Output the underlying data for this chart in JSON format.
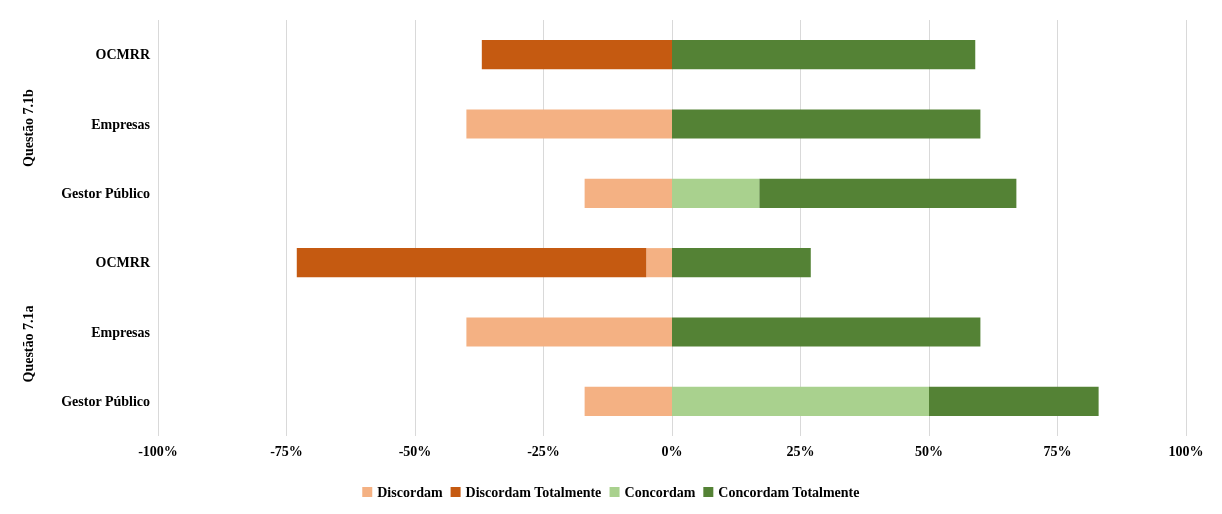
{
  "chart_data": {
    "type": "bar",
    "orientation": "horizontal",
    "stacked": true,
    "categories": [
      "OCMRR",
      "Empresas",
      "Gestor Público",
      "OCMRR",
      "Empresas",
      "Gestor Público"
    ],
    "series": [
      {
        "name": "Discordam",
        "color": "#f4b183",
        "values": [
          null,
          -40,
          -17,
          -5,
          -40,
          -17
        ]
      },
      {
        "name": "Discordam Totalmente",
        "color": "#c55a11",
        "values": [
          -37,
          null,
          null,
          -68,
          null,
          null
        ]
      },
      {
        "name": "Concordam",
        "color": "#a9d18e",
        "values": [
          null,
          null,
          17,
          null,
          null,
          50
        ]
      },
      {
        "name": "Concordam Totalmente",
        "color": "#548235",
        "values": [
          59,
          60,
          50,
          27,
          60,
          33
        ]
      }
    ],
    "annotations": [
      "Questão 7.1b",
      "Questão 7.1a"
    ],
    "xlim": [
      -100,
      100
    ],
    "xticks": [
      {
        "value": -100,
        "label": "-100%"
      },
      {
        "value": -75,
        "label": "-75%"
      },
      {
        "value": -50,
        "label": "-50%"
      },
      {
        "value": -25,
        "label": "-25%"
      },
      {
        "value": 0,
        "label": "0%"
      },
      {
        "value": 25,
        "label": "25%"
      },
      {
        "value": 50,
        "label": "50%"
      },
      {
        "value": 75,
        "label": "75%"
      },
      {
        "value": 100,
        "label": "100%"
      }
    ],
    "grid": "x",
    "legend": "bottom"
  }
}
